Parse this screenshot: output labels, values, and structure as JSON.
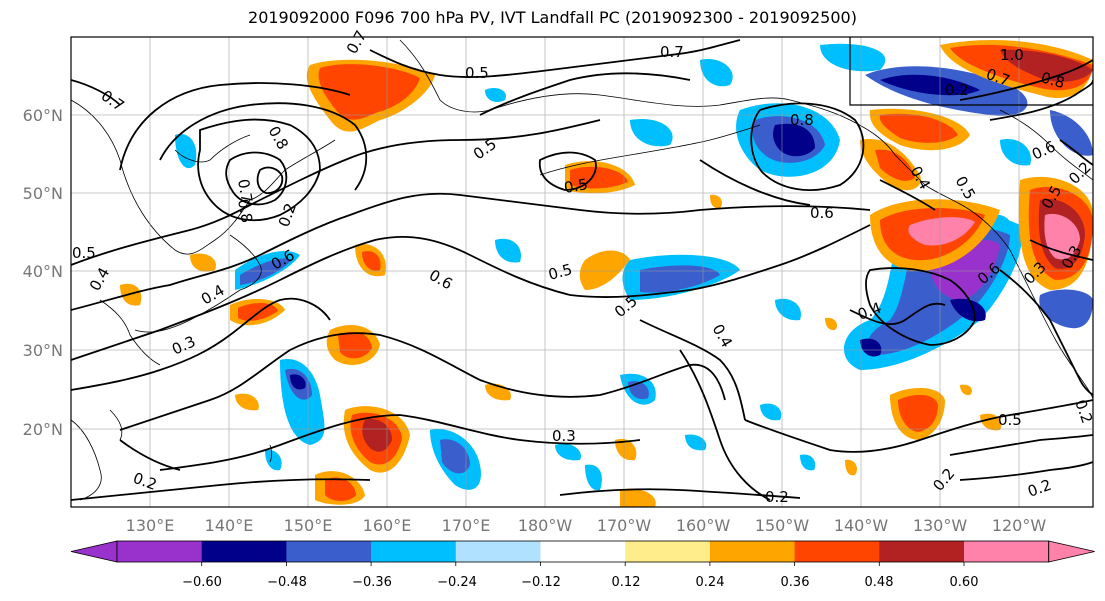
{
  "title": "2019092000 F096 700 hPa PV, IVT Landfall PC (2019092300 - 2019092500)",
  "lat_labels": [
    "60°N",
    "50°N",
    "40°N",
    "30°N",
    "20°N"
  ],
  "lon_labels": [
    "130°E",
    "140°E",
    "150°E",
    "160°E",
    "170°E",
    "180°W",
    "170°W",
    "160°W",
    "150°W",
    "140°W",
    "130°W",
    "120°W"
  ],
  "colorbar": {
    "ticks": [
      "−0.60",
      "−0.48",
      "−0.36",
      "−0.24",
      "−0.12",
      "0.12",
      "0.24",
      "0.36",
      "0.48",
      "0.60"
    ],
    "colors": [
      "#9932cc",
      "#00008b",
      "#3a5fcd",
      "#00bfff",
      "#b0e2ff",
      "#ffffff",
      "#ffec8b",
      "#ffa500",
      "#ff4500",
      "#b22222",
      "#ff82ab"
    ]
  },
  "contour_labels": [
    "0.7",
    "0.5",
    "0.7",
    "0.8",
    "1.0",
    "0.7",
    "0.8",
    "0.2",
    "0.5",
    "0.6",
    "0.8",
    "0.4",
    "0.5",
    "0.8",
    "0.7",
    "0.2",
    "0.6",
    "0.5",
    "0.4",
    "0.6",
    "0.3",
    "0.4",
    "0.6",
    "0.5",
    "0.5",
    "0.5",
    "0.3",
    "0.4",
    "0.4",
    "0.6",
    "0.3",
    "0.5",
    "0.2",
    "0.2",
    "0.2",
    "0.2",
    "0.5",
    "0.3",
    "0.2",
    "0.2",
    "0.7"
  ]
}
